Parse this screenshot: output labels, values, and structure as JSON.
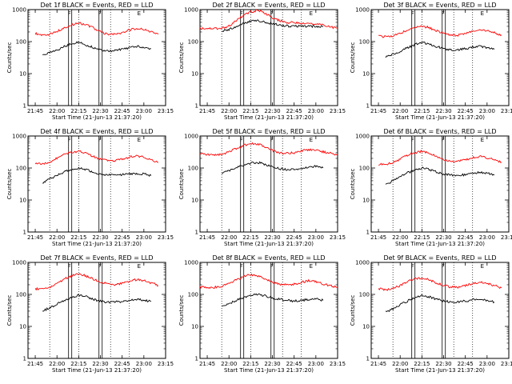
{
  "chart_data": {
    "type": "line",
    "grid": false,
    "legend": "none",
    "colors": {
      "events": "#000000",
      "lld": "#ff0000"
    },
    "xtick_labels": [
      "21:45",
      "22:00",
      "22:15",
      "22:30",
      "22:45",
      "23:00",
      "23:15"
    ],
    "xlim": [
      "21:40",
      "23:15"
    ],
    "ytick_labels": [
      "1",
      "10",
      "100",
      "1000"
    ],
    "ylim": [
      1,
      1000
    ],
    "yscale": "log",
    "ylabel": "Counts/sec",
    "xlabel": "Start Time (21-Jun-13 21:37:20)",
    "dotted_markers": [
      "21:55",
      "22:15",
      "22:37",
      "22:50"
    ],
    "flag_markers": [
      {
        "label": "F",
        "time": "22:08"
      },
      {
        "label": "F",
        "time": "22:29"
      },
      {
        "label": "E",
        "time": "22:56"
      }
    ],
    "panels": [
      {
        "title": "Det 1f BLACK = Events, RED = LLD",
        "series": [
          {
            "legend": "RED = LLD",
            "x": [
              "21:45",
              "21:50",
              "21:55",
              "22:00",
              "22:05",
              "22:10",
              "22:15",
              "22:20",
              "22:25",
              "22:30",
              "22:35",
              "22:40",
              "22:45",
              "22:50",
              "22:55",
              "23:00",
              "23:05",
              "23:10"
            ],
            "y": [
              180,
              160,
              170,
              210,
              270,
              330,
              380,
              340,
              270,
              200,
              170,
              170,
              190,
              230,
              260,
              240,
              200,
              170
            ]
          },
          {
            "legend": "BLACK = Events",
            "x": [
              "21:50",
              "21:55",
              "22:00",
              "22:05",
              "22:10",
              "22:15",
              "22:20",
              "22:25",
              "22:30",
              "22:35",
              "22:40",
              "22:45",
              "22:50",
              "22:55",
              "23:00",
              "23:05"
            ],
            "y": [
              38,
              45,
              55,
              70,
              85,
              95,
              80,
              65,
              55,
              50,
              52,
              58,
              65,
              70,
              68,
              60
            ]
          }
        ]
      },
      {
        "title": "Det 2f BLACK = Events, RED = LLD",
        "series": [
          {
            "legend": "RED = LLD",
            "x": [
              "21:40",
              "21:50",
              "21:55",
              "22:00",
              "22:05",
              "22:10",
              "22:15",
              "22:20",
              "22:25",
              "22:30",
              "22:35",
              "22:40",
              "22:45",
              "22:50",
              "22:55",
              "23:00",
              "23:05",
              "23:15"
            ],
            "y": [
              260,
              260,
              260,
              310,
              450,
              650,
              850,
              950,
              780,
              560,
              450,
              400,
              390,
              380,
              380,
              360,
              330,
              260
            ]
          },
          {
            "legend": "BLACK = Events",
            "x": [
              "21:55",
              "22:00",
              "22:05",
              "22:10",
              "22:15",
              "22:20",
              "22:25",
              "22:30",
              "22:35",
              "22:40",
              "22:45",
              "22:50",
              "22:55",
              "23:00",
              "23:05"
            ],
            "y": [
              210,
              240,
              300,
              370,
              430,
              450,
              400,
              360,
              330,
              310,
              300,
              300,
              300,
              300,
              290
            ]
          }
        ]
      },
      {
        "title": "Det 3f BLACK = Events, RED = LLD",
        "series": [
          {
            "legend": "RED = LLD",
            "x": [
              "21:45",
              "21:50",
              "21:55",
              "22:00",
              "22:05",
              "22:10",
              "22:15",
              "22:20",
              "22:25",
              "22:30",
              "22:35",
              "22:40",
              "22:45",
              "22:50",
              "22:55",
              "23:00",
              "23:05",
              "23:10"
            ],
            "y": [
              150,
              140,
              150,
              180,
              230,
              280,
              310,
              270,
              220,
              180,
              160,
              160,
              180,
              210,
              230,
              220,
              190,
              160
            ]
          },
          {
            "legend": "BLACK = Events",
            "x": [
              "21:50",
              "21:55",
              "22:00",
              "22:05",
              "22:10",
              "22:15",
              "22:20",
              "22:25",
              "22:30",
              "22:35",
              "22:40",
              "22:45",
              "22:50",
              "22:55",
              "23:00",
              "23:05"
            ],
            "y": [
              32,
              40,
              50,
              65,
              80,
              95,
              85,
              70,
              60,
              55,
              55,
              60,
              68,
              72,
              65,
              58
            ]
          }
        ]
      },
      {
        "title": "Det 4f BLACK = Events, RED = LLD",
        "series": [
          {
            "legend": "RED = LLD",
            "x": [
              "21:45",
              "21:50",
              "21:55",
              "22:00",
              "22:05",
              "22:10",
              "22:15",
              "22:20",
              "22:25",
              "22:30",
              "22:35",
              "22:40",
              "22:45",
              "22:50",
              "22:55",
              "23:00",
              "23:05",
              "23:10"
            ],
            "y": [
              140,
              130,
              150,
              200,
              260,
              310,
              330,
              290,
              230,
              190,
              170,
              170,
              190,
              220,
              240,
              220,
              180,
              150
            ]
          },
          {
            "legend": "BLACK = Events",
            "x": [
              "21:50",
              "21:55",
              "22:00",
              "22:05",
              "22:10",
              "22:15",
              "22:20",
              "22:25",
              "22:30",
              "22:35",
              "22:40",
              "22:45",
              "22:50",
              "22:55",
              "23:00",
              "23:05"
            ],
            "y": [
              35,
              45,
              60,
              75,
              90,
              100,
              90,
              75,
              65,
              60,
              60,
              62,
              65,
              68,
              65,
              58
            ]
          }
        ]
      },
      {
        "title": "Det 5f BLACK = Events, RED = LLD",
        "series": [
          {
            "legend": "RED = LLD",
            "x": [
              "21:40",
              "21:50",
              "21:55",
              "22:00",
              "22:05",
              "22:10",
              "22:15",
              "22:20",
              "22:25",
              "22:30",
              "22:35",
              "22:40",
              "22:45",
              "22:50",
              "22:55",
              "23:00",
              "23:05",
              "23:15"
            ],
            "y": [
              270,
              260,
              270,
              320,
              400,
              500,
              600,
              560,
              450,
              350,
              300,
              290,
              300,
              340,
              380,
              360,
              320,
              260
            ]
          },
          {
            "legend": "BLACK = Events",
            "x": [
              "21:55",
              "22:00",
              "22:05",
              "22:10",
              "22:15",
              "22:20",
              "22:25",
              "22:30",
              "22:35",
              "22:40",
              "22:45",
              "22:50",
              "22:55",
              "23:00",
              "23:05"
            ],
            "y": [
              70,
              80,
              100,
              120,
              140,
              150,
              130,
              110,
              95,
              90,
              90,
              95,
              105,
              115,
              100
            ]
          }
        ]
      },
      {
        "title": "Det 6f BLACK = Events, RED = LLD",
        "series": [
          {
            "legend": "RED = LLD",
            "x": [
              "21:45",
              "21:50",
              "21:55",
              "22:00",
              "22:05",
              "22:10",
              "22:15",
              "22:20",
              "22:25",
              "22:30",
              "22:35",
              "22:40",
              "22:45",
              "22:50",
              "22:55",
              "23:00",
              "23:05",
              "23:10"
            ],
            "y": [
              130,
              130,
              150,
              190,
              250,
              300,
              330,
              290,
              230,
              180,
              160,
              160,
              180,
              210,
              230,
              210,
              180,
              150
            ]
          },
          {
            "legend": "BLACK = Events",
            "x": [
              "21:50",
              "21:55",
              "22:00",
              "22:05",
              "22:10",
              "22:15",
              "22:20",
              "22:25",
              "22:30",
              "22:35",
              "22:40",
              "22:45",
              "22:50",
              "22:55",
              "23:00",
              "23:05"
            ],
            "y": [
              30,
              40,
              55,
              70,
              85,
              100,
              90,
              75,
              65,
              60,
              60,
              62,
              68,
              72,
              68,
              60
            ]
          }
        ]
      },
      {
        "title": "Det 7f BLACK = Events, RED = LLD",
        "series": [
          {
            "legend": "RED = LLD",
            "x": [
              "21:45",
              "21:50",
              "21:55",
              "22:00",
              "22:05",
              "22:10",
              "22:15",
              "22:20",
              "22:25",
              "22:30",
              "22:35",
              "22:40",
              "22:45",
              "22:50",
              "22:55",
              "23:00",
              "23:05",
              "23:10"
            ],
            "y": [
              150,
              150,
              170,
              220,
              300,
              380,
              430,
              380,
              300,
              240,
              210,
              200,
              220,
              260,
              290,
              270,
              230,
              190
            ]
          },
          {
            "legend": "BLACK = Events",
            "x": [
              "21:50",
              "21:55",
              "22:00",
              "22:05",
              "22:10",
              "22:15",
              "22:20",
              "22:25",
              "22:30",
              "22:35",
              "22:40",
              "22:45",
              "22:50",
              "22:55",
              "23:00",
              "23:05"
            ],
            "y": [
              30,
              38,
              50,
              65,
              80,
              95,
              85,
              70,
              62,
              58,
              58,
              60,
              66,
              70,
              66,
              60
            ]
          }
        ]
      },
      {
        "title": "Det 8f BLACK = Events, RED = LLD",
        "series": [
          {
            "legend": "RED = LLD",
            "x": [
              "21:40",
              "21:50",
              "21:55",
              "22:00",
              "22:05",
              "22:10",
              "22:15",
              "22:20",
              "22:25",
              "22:30",
              "22:35",
              "22:40",
              "22:45",
              "22:50",
              "22:55",
              "23:00",
              "23:05",
              "23:15"
            ],
            "y": [
              170,
              165,
              180,
              220,
              280,
              360,
              420,
              380,
              300,
              240,
              210,
              200,
              210,
              240,
              270,
              250,
              210,
              170
            ]
          },
          {
            "legend": "BLACK = Events",
            "x": [
              "21:55",
              "22:00",
              "22:05",
              "22:10",
              "22:15",
              "22:20",
              "22:25",
              "22:30",
              "22:35",
              "22:40",
              "22:45",
              "22:50",
              "22:55",
              "23:00",
              "23:05"
            ],
            "y": [
              40,
              50,
              65,
              80,
              95,
              100,
              90,
              78,
              70,
              65,
              62,
              65,
              70,
              72,
              65
            ]
          }
        ]
      },
      {
        "title": "Det 9f BLACK = Events, RED = LLD",
        "series": [
          {
            "legend": "RED = LLD",
            "x": [
              "21:45",
              "21:50",
              "21:55",
              "22:00",
              "22:05",
              "22:10",
              "22:15",
              "22:20",
              "22:25",
              "22:30",
              "22:35",
              "22:40",
              "22:45",
              "22:50",
              "22:55",
              "23:00",
              "23:05",
              "23:10"
            ],
            "y": [
              150,
              140,
              150,
              190,
              250,
              300,
              330,
              290,
              230,
              190,
              170,
              170,
              190,
              220,
              240,
              220,
              190,
              160
            ]
          },
          {
            "legend": "BLACK = Events",
            "x": [
              "21:50",
              "21:55",
              "22:00",
              "22:05",
              "22:10",
              "22:15",
              "22:20",
              "22:25",
              "22:30",
              "22:35",
              "22:40",
              "22:45",
              "22:50",
              "22:55",
              "23:00",
              "23:05"
            ],
            "y": [
              28,
              36,
              48,
              62,
              78,
              92,
              84,
              70,
              62,
              58,
              58,
              62,
              68,
              72,
              66,
              58
            ]
          }
        ]
      }
    ]
  }
}
